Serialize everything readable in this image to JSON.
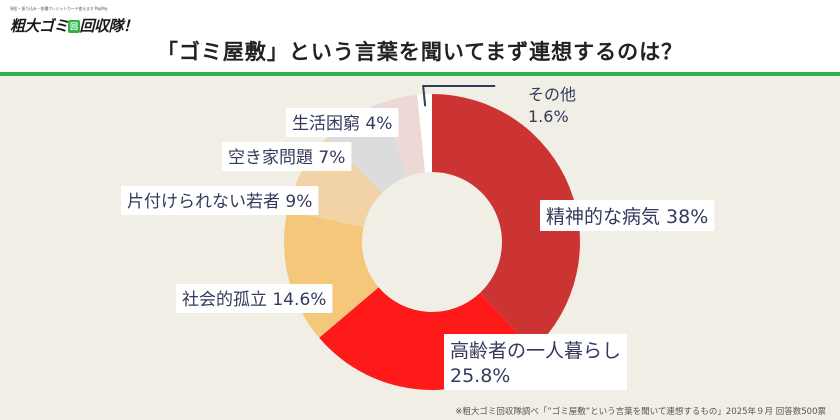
{
  "header": {
    "logo_tagline": "現金・振り込み・各種クレジットカード使えます PayPay",
    "logo_name": "粗大ゴミ",
    "logo_badge": "回",
    "logo_suffix": "回収隊！",
    "title": "「ゴミ屋敷」という言葉を聞いてまず連想するのは？",
    "accent_color": "#2db34a"
  },
  "chart_data": {
    "type": "pie",
    "style": "donut",
    "categories": [
      "精神的な病気",
      "高齢者の一人暮らし",
      "社会的孤立",
      "片付けられない若者",
      "空き家問題",
      "生活困窮",
      "その他"
    ],
    "values": [
      38,
      25.8,
      14.6,
      9,
      7,
      4,
      1.6
    ],
    "labels": [
      "精神的な病気 38%",
      "高齢者の一人暮らし",
      "社会的孤立 14.6%",
      "片付けられない若者 9%",
      "空き家問題 7%",
      "生活困窮 4%",
      "その他"
    ],
    "labels_line2": [
      "",
      "25.8%",
      "",
      "",
      "",
      "",
      "1.6%"
    ],
    "colors": [
      "#cc3333",
      "#ff1a1a",
      "#f5c77a",
      "#f1d3a6",
      "#dcdcdc",
      "#eed8d6",
      "#ffffff"
    ],
    "start_angle_deg": 0
  },
  "footer": {
    "note": "※粗大ゴミ回収隊調べ「”ゴミ屋敷”という言葉を聞いて連想するもの」2025年９月 回答数500票"
  }
}
